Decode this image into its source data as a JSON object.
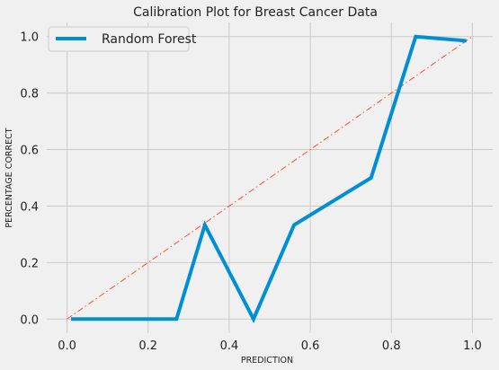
{
  "chart_data": {
    "type": "line",
    "title": "Calibration Plot for Breast Cancer Data",
    "xlabel": "PREDICTION",
    "ylabel": "PERCENTAGE CORRECT",
    "xlim": [
      -0.05,
      1.05
    ],
    "ylim": [
      -0.05,
      1.05
    ],
    "xticks": [
      0.0,
      0.2,
      0.4,
      0.6,
      0.8,
      1.0
    ],
    "yticks": [
      0.0,
      0.2,
      0.4,
      0.6,
      0.8,
      1.0
    ],
    "grid": true,
    "legend_position": "top-left",
    "series": [
      {
        "name": "Random Forest",
        "color": "#008fd5",
        "x": [
          0.01,
          0.27,
          0.34,
          0.46,
          0.56,
          0.75,
          0.86,
          0.985
        ],
        "y": [
          0.0,
          0.0,
          0.333,
          0.0,
          0.333,
          0.5,
          1.0,
          0.985
        ]
      }
    ],
    "reference_line": {
      "color": "#fc4f30",
      "style": "dash-dot",
      "x": [
        0.0,
        1.0
      ],
      "y": [
        0.0,
        1.0
      ]
    }
  }
}
